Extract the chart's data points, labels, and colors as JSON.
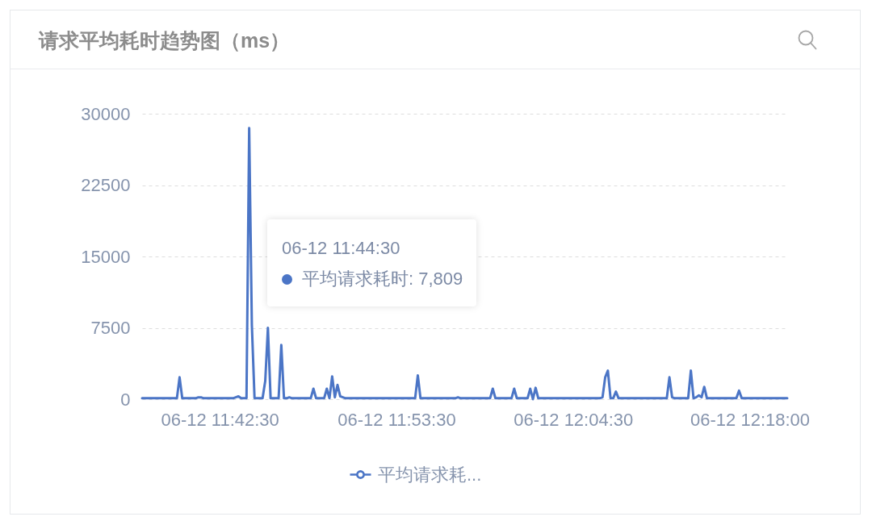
{
  "chart_data": {
    "type": "line",
    "title": "请求平均耗时趋势图（ms）",
    "categories": [
      null,
      null,
      null,
      null,
      null,
      null,
      null,
      null,
      null,
      null,
      null,
      null,
      null,
      null,
      null,
      null,
      null,
      null,
      null,
      null,
      null,
      null,
      null,
      null,
      null,
      null,
      null,
      null,
      null,
      "06-12 11:42:30",
      null,
      null,
      null,
      null,
      null,
      null,
      null,
      null,
      null,
      null,
      null,
      null,
      null,
      null,
      null,
      null,
      null,
      null,
      null,
      null,
      null,
      null,
      null,
      null,
      null,
      null,
      null,
      null,
      null,
      null,
      null,
      null,
      null,
      null,
      null,
      null,
      null,
      null,
      null,
      null,
      null,
      null,
      null,
      null,
      null,
      null,
      null,
      null,
      null,
      null,
      null,
      null,
      null,
      null,
      null,
      null,
      null,
      null,
      null,
      null,
      null,
      null,
      null,
      null,
      null,
      "06-12 11:53:30",
      null,
      null,
      null,
      null,
      null,
      null,
      null,
      null,
      null,
      null,
      null,
      null,
      null,
      null,
      null,
      null,
      null,
      null,
      null,
      null,
      null,
      null,
      null,
      null,
      null,
      null,
      null,
      null,
      null,
      null,
      null,
      null,
      null,
      null,
      null,
      null,
      null,
      null,
      null,
      null,
      null,
      null,
      null,
      null,
      null,
      null,
      null,
      null,
      null,
      null,
      null,
      null,
      null,
      null,
      null,
      null,
      null,
      null,
      null,
      null,
      null,
      null,
      null,
      null,
      null,
      "06-12 12:04:30",
      null,
      null,
      null,
      null,
      null,
      null,
      null,
      null,
      null,
      null,
      null,
      null,
      null,
      null,
      null,
      null,
      null,
      null,
      null,
      null,
      null,
      null,
      null,
      null,
      null,
      null,
      null,
      null,
      null,
      null,
      null,
      null,
      null,
      null,
      null,
      null,
      null,
      null,
      null,
      null,
      null,
      null,
      null,
      null,
      null,
      null,
      null,
      null,
      null,
      null,
      null,
      null,
      null,
      null,
      null,
      null,
      null,
      null,
      null,
      null,
      null,
      null,
      null,
      null,
      null,
      "06-12 12:18:00",
      null,
      null,
      null,
      null,
      null,
      null,
      null,
      null,
      null,
      null,
      null,
      null,
      null,
      null
    ],
    "series": [
      {
        "name": "平均请求耗...",
        "color": "#4b75c6",
        "values": [
          100,
          100,
          100,
          100,
          100,
          100,
          100,
          100,
          100,
          100,
          100,
          100,
          100,
          100,
          2300,
          100,
          100,
          100,
          100,
          100,
          100,
          200,
          200,
          100,
          100,
          100,
          100,
          100,
          100,
          100,
          100,
          100,
          100,
          100,
          100,
          200,
          300,
          100,
          100,
          100,
          28500,
          7809,
          100,
          100,
          100,
          100,
          1900,
          7500,
          100,
          100,
          100,
          100,
          5700,
          100,
          100,
          200,
          100,
          100,
          100,
          100,
          100,
          100,
          100,
          100,
          1100,
          100,
          100,
          100,
          100,
          1100,
          100,
          2400,
          200,
          1500,
          300,
          200,
          100,
          100,
          100,
          100,
          100,
          100,
          100,
          100,
          100,
          100,
          100,
          100,
          100,
          100,
          100,
          100,
          100,
          100,
          100,
          100,
          100,
          100,
          100,
          100,
          100,
          100,
          100,
          2500,
          100,
          100,
          100,
          100,
          100,
          100,
          100,
          100,
          100,
          100,
          100,
          100,
          100,
          100,
          200,
          100,
          100,
          100,
          100,
          100,
          100,
          100,
          100,
          100,
          100,
          100,
          100,
          1100,
          100,
          100,
          100,
          100,
          100,
          100,
          100,
          1100,
          100,
          100,
          100,
          100,
          100,
          1100,
          0,
          1200,
          100,
          100,
          100,
          100,
          100,
          100,
          100,
          100,
          100,
          100,
          100,
          100,
          100,
          100,
          100,
          100,
          100,
          100,
          100,
          100,
          100,
          100,
          100,
          100,
          200,
          2300,
          3000,
          100,
          100,
          800,
          100,
          100,
          100,
          100,
          100,
          100,
          100,
          100,
          100,
          100,
          100,
          100,
          100,
          100,
          100,
          100,
          100,
          100,
          100,
          2300,
          200,
          100,
          100,
          100,
          100,
          100,
          100,
          3000,
          100,
          200,
          400,
          200,
          1300,
          100,
          100,
          100,
          100,
          100,
          100,
          100,
          100,
          100,
          100,
          100,
          100,
          900,
          100,
          100,
          100,
          100,
          100,
          100,
          100,
          100,
          100,
          100,
          100,
          100,
          100,
          100,
          100,
          100,
          100,
          100
        ]
      }
    ],
    "ylim": [
      0,
      30000
    ],
    "yticks": [
      0,
      7500,
      15000,
      22500,
      30000
    ],
    "grid": "y",
    "legend": "bottom",
    "line_style": "solid",
    "annotations": [
      "06-12 11:44:30",
      "平均请求耗时: 7,809"
    ]
  }
}
